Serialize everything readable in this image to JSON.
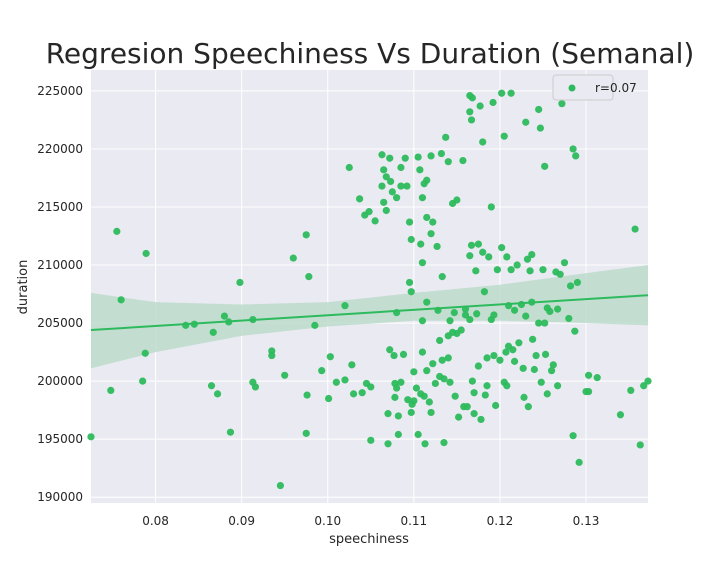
{
  "chart_data": {
    "type": "scatter",
    "title": "Regresion Speechiness Vs Duration (Semanal)",
    "xlabel": "speechiness",
    "ylabel": "duration",
    "xlim": [
      0.0725,
      0.1372
    ],
    "ylim": [
      189500,
      226800
    ],
    "xticks": [
      0.08,
      0.09,
      0.1,
      0.11,
      0.12,
      0.13
    ],
    "xtick_labels": [
      "0.08",
      "0.09",
      "0.10",
      "0.11",
      "0.12",
      "0.13"
    ],
    "yticks": [
      190000,
      195000,
      200000,
      205000,
      210000,
      215000,
      220000,
      225000
    ],
    "ytick_labels": [
      "190000",
      "195000",
      "200000",
      "205000",
      "210000",
      "215000",
      "220000",
      "225000"
    ],
    "grid": true,
    "legend_position": "top-right",
    "series": [
      {
        "name": "r=0.07",
        "color": "#2dba5c",
        "points": [
          [
            0.0725,
            195200
          ],
          [
            0.0748,
            199200
          ],
          [
            0.0755,
            212900
          ],
          [
            0.076,
            207000
          ],
          [
            0.0785,
            200000
          ],
          [
            0.0788,
            202400
          ],
          [
            0.0789,
            211000
          ],
          [
            0.0835,
            204800
          ],
          [
            0.0845,
            204900
          ],
          [
            0.0865,
            199600
          ],
          [
            0.0867,
            204200
          ],
          [
            0.0872,
            198900
          ],
          [
            0.088,
            205600
          ],
          [
            0.0885,
            205100
          ],
          [
            0.0887,
            195600
          ],
          [
            0.0898,
            208500
          ],
          [
            0.0913,
            205300
          ],
          [
            0.0913,
            199900
          ],
          [
            0.0916,
            199500
          ],
          [
            0.0935,
            202600
          ],
          [
            0.0935,
            202200
          ],
          [
            0.0945,
            191000
          ],
          [
            0.095,
            200500
          ],
          [
            0.096,
            210600
          ],
          [
            0.0975,
            212600
          ],
          [
            0.0975,
            195500
          ],
          [
            0.0976,
            198800
          ],
          [
            0.0978,
            209000
          ],
          [
            0.0985,
            204800
          ],
          [
            0.0993,
            200900
          ],
          [
            0.1001,
            198500
          ],
          [
            0.1003,
            202100
          ],
          [
            0.101,
            199900
          ],
          [
            0.102,
            206500
          ],
          [
            0.102,
            200100
          ],
          [
            0.1025,
            218400
          ],
          [
            0.1028,
            201400
          ],
          [
            0.103,
            198900
          ],
          [
            0.1037,
            215700
          ],
          [
            0.104,
            199000
          ],
          [
            0.1043,
            214300
          ],
          [
            0.1045,
            199800
          ],
          [
            0.1048,
            214600
          ],
          [
            0.105,
            199500
          ],
          [
            0.105,
            194900
          ],
          [
            0.1055,
            213800
          ],
          [
            0.1063,
            219500
          ],
          [
            0.1063,
            216800
          ],
          [
            0.1065,
            218200
          ],
          [
            0.1065,
            215400
          ],
          [
            0.1068,
            217600
          ],
          [
            0.1068,
            214700
          ],
          [
            0.107,
            194600
          ],
          [
            0.107,
            197200
          ],
          [
            0.1072,
            219200
          ],
          [
            0.1072,
            202700
          ],
          [
            0.1073,
            217200
          ],
          [
            0.1075,
            216300
          ],
          [
            0.1077,
            202200
          ],
          [
            0.1078,
            199800
          ],
          [
            0.1078,
            198600
          ],
          [
            0.108,
            215800
          ],
          [
            0.108,
            205900
          ],
          [
            0.108,
            199400
          ],
          [
            0.1082,
            197000
          ],
          [
            0.1082,
            195400
          ],
          [
            0.1085,
            218400
          ],
          [
            0.1085,
            216800
          ],
          [
            0.1085,
            199900
          ],
          [
            0.1088,
            202300
          ],
          [
            0.109,
            219200
          ],
          [
            0.1092,
            216800
          ],
          [
            0.1093,
            198400
          ],
          [
            0.1095,
            213700
          ],
          [
            0.1095,
            208500
          ],
          [
            0.1097,
            212200
          ],
          [
            0.1097,
            207700
          ],
          [
            0.1097,
            197300
          ],
          [
            0.1098,
            198000
          ],
          [
            0.11,
            200800
          ],
          [
            0.11,
            198300
          ],
          [
            0.1103,
            199400
          ],
          [
            0.1105,
            219300
          ],
          [
            0.1105,
            195400
          ],
          [
            0.1107,
            218200
          ],
          [
            0.1108,
            211800
          ],
          [
            0.1108,
            198900
          ],
          [
            0.111,
            215800
          ],
          [
            0.111,
            210200
          ],
          [
            0.111,
            202500
          ],
          [
            0.111,
            205200
          ],
          [
            0.1112,
            217000
          ],
          [
            0.1112,
            198700
          ],
          [
            0.1113,
            194600
          ],
          [
            0.1115,
            217300
          ],
          [
            0.1115,
            214100
          ],
          [
            0.1115,
            206800
          ],
          [
            0.1115,
            200900
          ],
          [
            0.1118,
            198200
          ],
          [
            0.112,
            219400
          ],
          [
            0.112,
            212700
          ],
          [
            0.112,
            197300
          ],
          [
            0.1122,
            213700
          ],
          [
            0.1122,
            201500
          ],
          [
            0.1125,
            199800
          ],
          [
            0.1127,
            211600
          ],
          [
            0.1128,
            206100
          ],
          [
            0.113,
            203500
          ],
          [
            0.113,
            200400
          ],
          [
            0.1132,
            219600
          ],
          [
            0.1133,
            209000
          ],
          [
            0.1133,
            201800
          ],
          [
            0.1135,
            200200
          ],
          [
            0.1135,
            194700
          ],
          [
            0.1137,
            221000
          ],
          [
            0.114,
            218900
          ],
          [
            0.114,
            203900
          ],
          [
            0.114,
            202000
          ],
          [
            0.1142,
            205200
          ],
          [
            0.1142,
            199900
          ],
          [
            0.1145,
            215300
          ],
          [
            0.1145,
            204200
          ],
          [
            0.1147,
            205900
          ],
          [
            0.1148,
            198700
          ],
          [
            0.115,
            215600
          ],
          [
            0.115,
            204100
          ],
          [
            0.1152,
            196900
          ],
          [
            0.1155,
            204400
          ],
          [
            0.1157,
            219000
          ],
          [
            0.1158,
            197800
          ],
          [
            0.116,
            206200
          ],
          [
            0.116,
            205700
          ],
          [
            0.1162,
            197800
          ],
          [
            0.1165,
            224600
          ],
          [
            0.1165,
            223200
          ],
          [
            0.1165,
            210800
          ],
          [
            0.1165,
            205300
          ],
          [
            0.1167,
            222500
          ],
          [
            0.1167,
            211700
          ],
          [
            0.1168,
            224400
          ],
          [
            0.1168,
            200000
          ],
          [
            0.117,
            199000
          ],
          [
            0.117,
            197200
          ],
          [
            0.1172,
            209500
          ],
          [
            0.1173,
            205800
          ],
          [
            0.1175,
            211800
          ],
          [
            0.1175,
            201300
          ],
          [
            0.1177,
            223700
          ],
          [
            0.1178,
            196700
          ],
          [
            0.118,
            220600
          ],
          [
            0.118,
            211100
          ],
          [
            0.1182,
            207700
          ],
          [
            0.1183,
            198800
          ],
          [
            0.1185,
            202000
          ],
          [
            0.1185,
            199600
          ],
          [
            0.1187,
            210700
          ],
          [
            0.119,
            215000
          ],
          [
            0.119,
            205300
          ],
          [
            0.1192,
            224000
          ],
          [
            0.1193,
            205700
          ],
          [
            0.1193,
            202200
          ],
          [
            0.1195,
            197900
          ],
          [
            0.1197,
            209600
          ],
          [
            0.12,
            201800
          ],
          [
            0.1202,
            224800
          ],
          [
            0.1202,
            211500
          ],
          [
            0.1205,
            221100
          ],
          [
            0.1205,
            199900
          ],
          [
            0.1207,
            202500
          ],
          [
            0.1208,
            199600
          ],
          [
            0.1208,
            210700
          ],
          [
            0.121,
            206500
          ],
          [
            0.121,
            203000
          ],
          [
            0.1213,
            224800
          ],
          [
            0.1213,
            209600
          ],
          [
            0.1215,
            202700
          ],
          [
            0.1217,
            206100
          ],
          [
            0.1217,
            201700
          ],
          [
            0.122,
            210000
          ],
          [
            0.1222,
            203300
          ],
          [
            0.1225,
            206600
          ],
          [
            0.1227,
            201100
          ],
          [
            0.1228,
            198600
          ],
          [
            0.123,
            222300
          ],
          [
            0.123,
            205600
          ],
          [
            0.1232,
            210500
          ],
          [
            0.1233,
            197800
          ],
          [
            0.1235,
            209500
          ],
          [
            0.1237,
            210900
          ],
          [
            0.1237,
            206800
          ],
          [
            0.1238,
            203600
          ],
          [
            0.124,
            201000
          ],
          [
            0.1242,
            202200
          ],
          [
            0.1245,
            223400
          ],
          [
            0.1245,
            205000
          ],
          [
            0.1247,
            221800
          ],
          [
            0.1248,
            199900
          ],
          [
            0.125,
            209600
          ],
          [
            0.1252,
            218500
          ],
          [
            0.1252,
            205000
          ],
          [
            0.1253,
            202300
          ],
          [
            0.1255,
            198900
          ],
          [
            0.1255,
            206300
          ],
          [
            0.1258,
            206000
          ],
          [
            0.126,
            200900
          ],
          [
            0.1262,
            201400
          ],
          [
            0.1265,
            209400
          ],
          [
            0.1267,
            199600
          ],
          [
            0.1267,
            206200
          ],
          [
            0.127,
            209200
          ],
          [
            0.1272,
            223900
          ],
          [
            0.1275,
            210200
          ],
          [
            0.128,
            205400
          ],
          [
            0.1282,
            208200
          ],
          [
            0.1285,
            195300
          ],
          [
            0.1285,
            220000
          ],
          [
            0.1287,
            204300
          ],
          [
            0.1288,
            219400
          ],
          [
            0.129,
            208500
          ],
          [
            0.1292,
            193000
          ],
          [
            0.13,
            199100
          ],
          [
            0.1303,
            200500
          ],
          [
            0.1303,
            199100
          ],
          [
            0.1313,
            200300
          ],
          [
            0.134,
            197100
          ],
          [
            0.1352,
            199200
          ],
          [
            0.1357,
            213100
          ],
          [
            0.1363,
            194500
          ],
          [
            0.1367,
            199600
          ],
          [
            0.1372,
            200000
          ]
        ]
      }
    ],
    "regression": {
      "color": "#2dba5c",
      "ci_color": "#bcdccb",
      "line": [
        [
          0.0725,
          204400
        ],
        [
          0.1372,
          207400
        ]
      ],
      "ci_upper": [
        [
          0.0725,
          207600
        ],
        [
          0.08,
          206800
        ],
        [
          0.09,
          206600
        ],
        [
          0.1,
          206800
        ],
        [
          0.11,
          207600
        ],
        [
          0.12,
          208300
        ],
        [
          0.13,
          209300
        ],
        [
          0.1372,
          210000
        ]
      ],
      "ci_lower": [
        [
          0.0725,
          201100
        ],
        [
          0.08,
          202500
        ],
        [
          0.09,
          203900
        ],
        [
          0.1,
          204700
        ],
        [
          0.11,
          205200
        ],
        [
          0.12,
          205200
        ],
        [
          0.13,
          205000
        ],
        [
          0.1372,
          204800
        ]
      ]
    }
  }
}
